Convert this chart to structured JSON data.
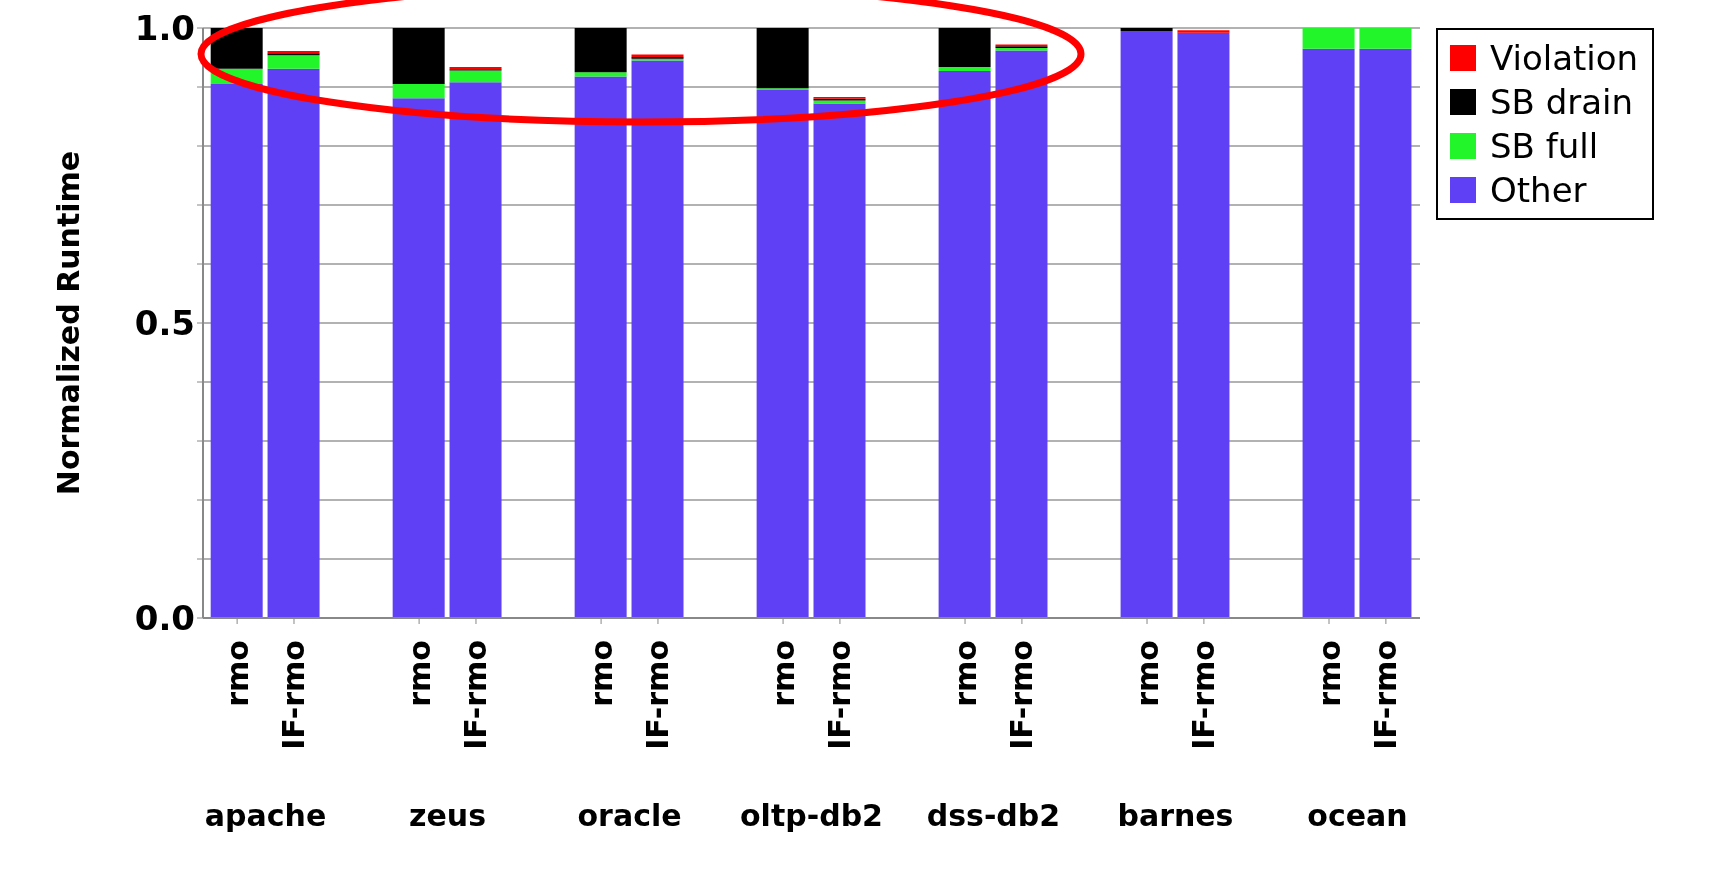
{
  "chart_data": {
    "type": "bar",
    "stacked": true,
    "ylabel": "Normalized Runtime",
    "categories": [
      "rmo",
      "IF-rmo",
      "rmo",
      "IF-rmo",
      "rmo",
      "IF-rmo",
      "rmo",
      "IF-rmo",
      "rmo",
      "IF-rmo",
      "rmo",
      "IF-rmo",
      "rmo",
      "IF-rmo"
    ],
    "annotations": [
      "apache",
      "zeus",
      "oracle",
      "oltp-db2",
      "dss-db2",
      "barnes",
      "ocean"
    ],
    "series": [
      {
        "name": "Other",
        "color": "#6040f5",
        "values": [
          0.905,
          0.931,
          0.881,
          0.908,
          0.918,
          0.945,
          0.895,
          0.872,
          0.927,
          0.962,
          0.995,
          0.992,
          0.965,
          0.965
        ]
      },
      {
        "name": "SB full",
        "color": "#22f52a",
        "values": [
          0.026,
          0.023,
          0.024,
          0.02,
          0.007,
          0.003,
          0.003,
          0.005,
          0.007,
          0.004,
          0,
          0,
          0.035,
          0.035
        ]
      },
      {
        "name": "SB drain",
        "color": "#000000",
        "values": [
          0.069,
          0.003,
          0.095,
          0.002,
          0.075,
          0.003,
          0.102,
          0.003,
          0.066,
          0.003,
          0.005,
          0,
          0,
          0
        ]
      },
      {
        "name": "Violation",
        "color": "#ff0000",
        "values": [
          0,
          0.004,
          0,
          0.004,
          0,
          0.004,
          0,
          0.003,
          0,
          0.003,
          0,
          0.004,
          0,
          0
        ]
      }
    ],
    "ylim": [
      0,
      1
    ],
    "yticks": [
      {
        "value": 0,
        "label": "0.0"
      },
      {
        "value": 0.1,
        "label": null
      },
      {
        "value": 0.2,
        "label": null
      },
      {
        "value": 0.3,
        "label": null
      },
      {
        "value": 0.4,
        "label": null
      },
      {
        "value": 0.5,
        "label": "0.5"
      },
      {
        "value": 0.6,
        "label": null
      },
      {
        "value": 0.7,
        "label": null
      },
      {
        "value": 0.8,
        "label": null
      },
      {
        "value": 0.9,
        "label": null
      },
      {
        "value": 1,
        "label": "1.0"
      }
    ],
    "grid": "y",
    "legend": "top right"
  }
}
